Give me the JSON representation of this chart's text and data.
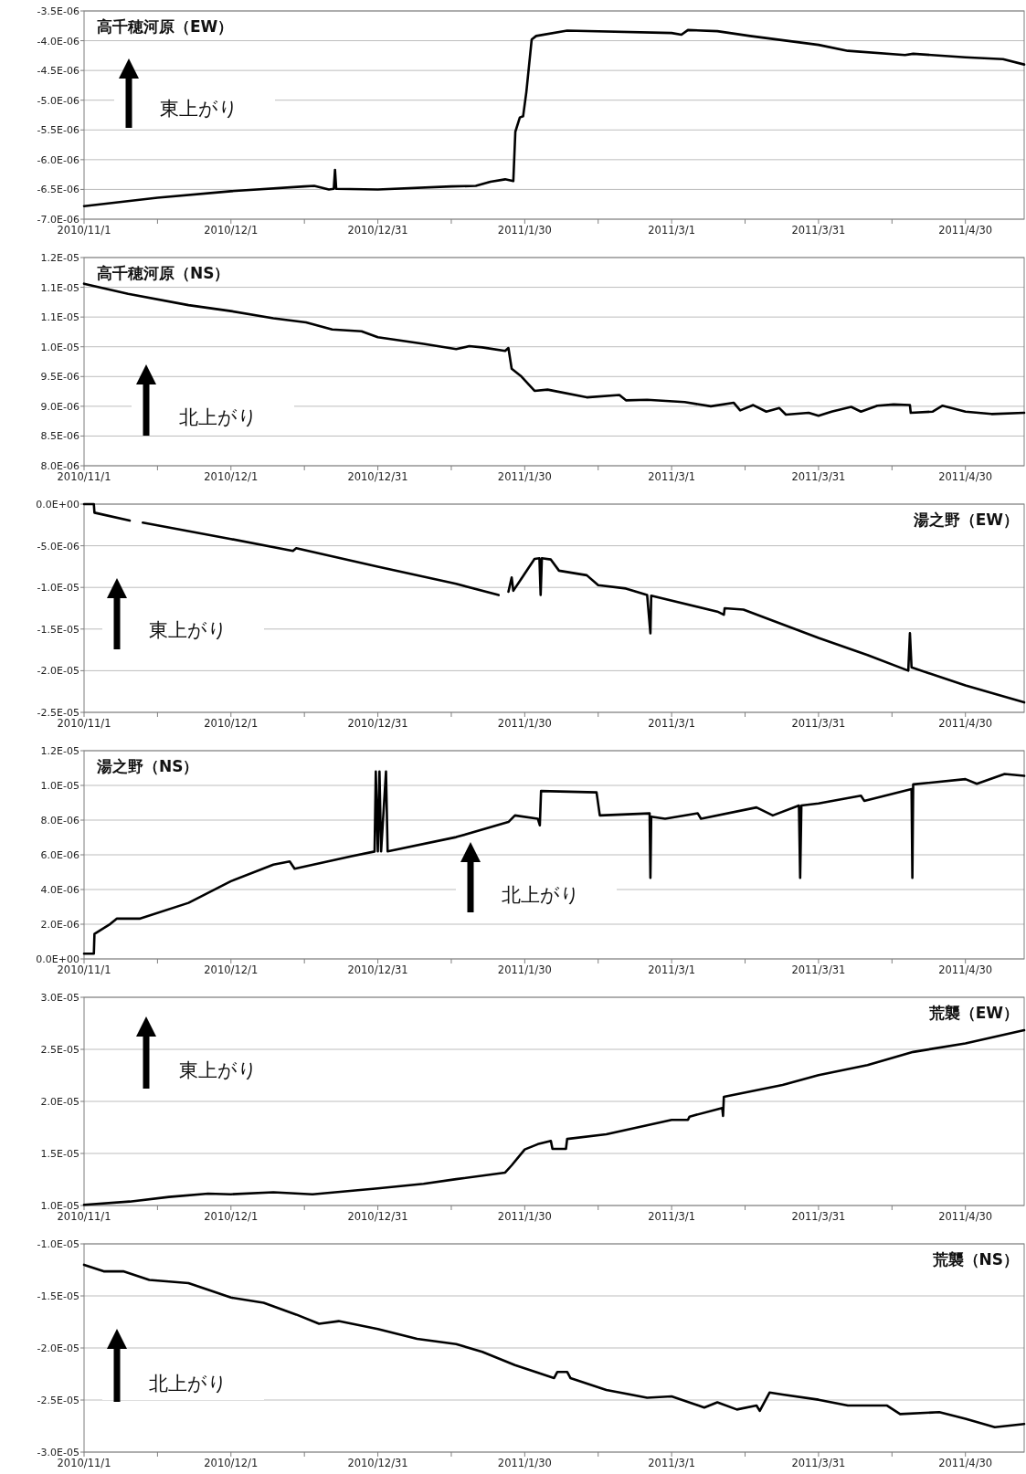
{
  "chart_data": [
    {
      "type": "line",
      "title": "高千穂河原（EW）",
      "annotations": [
        "東上がり"
      ],
      "grid": "y",
      "xlim": [
        "2010-11-01",
        "2011-05-12"
      ],
      "xticks": [
        {
          "value": "2010-11-01",
          "label": "2010/11/1"
        },
        {
          "value": "2010-11-16",
          "label": null
        },
        {
          "value": "2010-12-01",
          "label": "2010/12/1"
        },
        {
          "value": "2010-12-16",
          "label": null
        },
        {
          "value": "2010-12-31",
          "label": "2010/12/31"
        },
        {
          "value": "2011-01-15",
          "label": null
        },
        {
          "value": "2011-01-30",
          "label": "2011/1/30"
        },
        {
          "value": "2011-02-14",
          "label": null
        },
        {
          "value": "2011-03-01",
          "label": "2011/3/1"
        },
        {
          "value": "2011-03-16",
          "label": null
        },
        {
          "value": "2011-03-31",
          "label": "2011/3/31"
        },
        {
          "value": "2011-04-15",
          "label": null
        },
        {
          "value": "2011-04-30",
          "label": "2011/4/30"
        }
      ],
      "ylim": [
        -7e-06,
        -3.5e-06
      ],
      "yticks": [
        {
          "value": -7e-06,
          "label": "-7.0E-06"
        },
        {
          "value": -6.5e-06,
          "label": "-6.5E-06"
        },
        {
          "value": -6e-06,
          "label": "-6.0E-06"
        },
        {
          "value": -5.5e-06,
          "label": "-5.5E-06"
        },
        {
          "value": -5e-06,
          "label": "-5.0E-06"
        },
        {
          "value": -4.5e-06,
          "label": "-4.5E-06"
        },
        {
          "value": -4e-06,
          "label": "-4.0E-06"
        },
        {
          "value": -3.5e-06,
          "label": "-3.5E-06"
        }
      ],
      "series": [
        {
          "color": "#000000",
          "x": [
            "2010-11-01",
            "2010-11-16",
            "2010-12-01",
            "2010-12-16",
            "2010-12-18",
            "2010-12-21",
            "2010-12-22",
            "2010-12-22T06:00",
            "2010-12-22T12:00",
            "2010-12-31",
            "2011-01-15",
            "2011-01-20",
            "2011-01-23",
            "2011-01-26",
            "2011-01-27T16:00",
            "2011-01-28T02:00",
            "2011-01-29",
            "2011-01-29T16:00",
            "2011-01-30T08:00",
            "2011-01-31T10:00",
            "2011-02-01T08:00",
            "2011-02-07T16:00",
            "2011-03-01",
            "2011-03-03",
            "2011-03-04T08:00",
            "2011-03-10T08:00",
            "2011-03-17",
            "2011-03-31",
            "2011-04-06",
            "2011-04-17T16:00",
            "2011-04-19T08:00",
            "2011-04-30",
            "2011-05-07T16:00",
            "2011-05-12"
          ],
          "values": [
            -6.78e-06,
            -6.64e-06,
            -6.53e-06,
            -6.45e-06,
            -6.44e-06,
            -6.5e-06,
            -6.49e-06,
            -6.17e-06,
            -6.49e-06,
            -6.5e-06,
            -6.45e-06,
            -6.44e-06,
            -6.37e-06,
            -6.33e-06,
            -6.36e-06,
            -5.53e-06,
            -5.29e-06,
            -5.27e-06,
            -4.86e-06,
            -3.98e-06,
            -3.92e-06,
            -3.83e-06,
            -3.87e-06,
            -3.9e-06,
            -3.82e-06,
            -3.84e-06,
            -3.92e-06,
            -4.07e-06,
            -4.17e-06,
            -4.24e-06,
            -4.22e-06,
            -4.28e-06,
            -4.31e-06,
            -4.4e-06
          ]
        }
      ]
    },
    {
      "type": "line",
      "title": "高千穂河原（NS）",
      "annotations": [
        "北上がり"
      ],
      "grid": "y",
      "xlim": [
        "2010-11-01",
        "2011-05-12"
      ],
      "xticks": [
        {
          "value": "2010-11-01",
          "label": "2010/11/1"
        },
        {
          "value": "2010-11-16",
          "label": null
        },
        {
          "value": "2010-12-01",
          "label": "2010/12/1"
        },
        {
          "value": "2010-12-16",
          "label": null
        },
        {
          "value": "2010-12-31",
          "label": "2010/12/31"
        },
        {
          "value": "2011-01-15",
          "label": null
        },
        {
          "value": "2011-01-30",
          "label": "2011/1/30"
        },
        {
          "value": "2011-02-14",
          "label": null
        },
        {
          "value": "2011-03-01",
          "label": "2011/3/1"
        },
        {
          "value": "2011-03-16",
          "label": null
        },
        {
          "value": "2011-03-31",
          "label": "2011/3/31"
        },
        {
          "value": "2011-04-15",
          "label": null
        },
        {
          "value": "2011-04-30",
          "label": "2011/4/30"
        }
      ],
      "ylim": [
        8e-06,
        1.15e-05
      ],
      "yticks": [
        {
          "value": 8e-06,
          "label": "8.0E-06"
        },
        {
          "value": 8.5e-06,
          "label": "8.5E-06"
        },
        {
          "value": 9e-06,
          "label": "9.0E-06"
        },
        {
          "value": 9.5e-06,
          "label": "9.5E-06"
        },
        {
          "value": 1e-05,
          "label": "1.0E-05"
        },
        {
          "value": 1.05e-05,
          "label": "1.1E-05"
        },
        {
          "value": 1.1e-05,
          "label": "1.1E-05"
        },
        {
          "value": 1.15e-05,
          "label": "1.2E-05"
        }
      ],
      "series": [
        {
          "color": "#000000",
          "x": [
            "2010-11-01",
            "2010-11-10",
            "2010-11-22T08:00",
            "2010-12-01",
            "2010-12-09T16:00",
            "2010-12-16T08:00",
            "2010-12-21T16:00",
            "2010-12-27T16:00",
            "2010-12-31",
            "2011-01-09T08:00",
            "2011-01-16",
            "2011-01-18T16:00",
            "2011-01-21T08:00",
            "2011-01-26",
            "2011-01-26T16:00",
            "2011-01-27T08:00",
            "2011-01-29T08:00",
            "2011-02-01",
            "2011-02-03T16:00",
            "2011-02-11T16:00",
            "2011-02-18T08:00",
            "2011-02-19T16:00",
            "2011-02-24",
            "2011-03-03T16:00",
            "2011-03-09",
            "2011-03-13T16:00",
            "2011-03-15",
            "2011-03-17T16:00",
            "2011-03-20T08:00",
            "2011-03-23",
            "2011-03-24T08:00",
            "2011-03-29",
            "2011-03-31",
            "2011-04-02T16:00",
            "2011-04-06T16:00",
            "2011-04-08T16:00",
            "2011-04-12",
            "2011-04-15T08:00",
            "2011-04-18T16:00",
            "2011-04-18T20:00",
            "2011-04-23T08:00",
            "2011-04-25T08:00",
            "2011-04-30",
            "2011-05-05T08:00",
            "2011-05-12"
          ],
          "values": [
            1.106e-05,
            1.089e-05,
            1.07e-05,
            1.06e-05,
            1.048e-05,
            1.041e-05,
            1.029e-05,
            1.026e-05,
            1.016e-05,
            1.005e-05,
            9.96e-06,
            1.001e-05,
            9.99e-06,
            9.93e-06,
            9.98e-06,
            9.63e-06,
            9.5e-06,
            9.26e-06,
            9.28e-06,
            9.15e-06,
            9.19e-06,
            9.1e-06,
            9.11e-06,
            9.07e-06,
            9e-06,
            9.06e-06,
            8.93e-06,
            9.02e-06,
            8.91e-06,
            8.97e-06,
            8.86e-06,
            8.89e-06,
            8.84e-06,
            8.91e-06,
            8.99e-06,
            8.91e-06,
            9.01e-06,
            9.03e-06,
            9.02e-06,
            8.89e-06,
            8.91e-06,
            9.01e-06,
            8.91e-06,
            8.87e-06,
            8.89e-06
          ]
        }
      ]
    },
    {
      "type": "line",
      "title": "湯之野（EW）",
      "annotations": [
        "東上がり"
      ],
      "grid": "y",
      "xlim": [
        "2010-11-01",
        "2011-05-12"
      ],
      "xticks": [
        {
          "value": "2010-11-01",
          "label": "2010/11/1"
        },
        {
          "value": "2010-11-16",
          "label": null
        },
        {
          "value": "2010-12-01",
          "label": "2010/12/1"
        },
        {
          "value": "2010-12-16",
          "label": null
        },
        {
          "value": "2010-12-31",
          "label": "2010/12/31"
        },
        {
          "value": "2011-01-15",
          "label": null
        },
        {
          "value": "2011-01-30",
          "label": "2011/1/30"
        },
        {
          "value": "2011-02-14",
          "label": null
        },
        {
          "value": "2011-03-01",
          "label": "2011/3/1"
        },
        {
          "value": "2011-03-16",
          "label": null
        },
        {
          "value": "2011-03-31",
          "label": "2011/3/31"
        },
        {
          "value": "2011-04-15",
          "label": null
        },
        {
          "value": "2011-04-30",
          "label": "2011/4/30"
        }
      ],
      "ylim": [
        -2.5e-05,
        0
      ],
      "yticks": [
        {
          "value": -2.5e-05,
          "label": "-2.5E-05"
        },
        {
          "value": -2e-05,
          "label": "-2.0E-05"
        },
        {
          "value": -1.5e-05,
          "label": "-1.5E-05"
        },
        {
          "value": -1e-05,
          "label": "-1.0E-05"
        },
        {
          "value": -5e-06,
          "label": "-5.0E-06"
        },
        {
          "value": 0,
          "label": "0.0E+00"
        }
      ],
      "series": [
        {
          "color": "#000000",
          "x": [
            "2010-11-01",
            "2010-11-03",
            "2010-11-03T03:00",
            "2010-11-10T08:00",
            "2010-11-11T12:00",
            "2010-11-13",
            "2010-12-01",
            "2010-12-13T16:00",
            "2010-12-14T08:00",
            "2010-12-31",
            "2011-01-16",
            "2011-01-24T16:00",
            "2011-01-25T14:00",
            "2011-01-26T16:00",
            "2011-01-27T08:00",
            "2011-01-27T16:00",
            "2011-01-29T08:00",
            "2011-02-01",
            "2011-02-02",
            "2011-02-02T06:00",
            "2011-02-02T12:00",
            "2011-02-04T08:00",
            "2011-02-06",
            "2011-02-11T16:00",
            "2011-02-14",
            "2011-02-19T16:00",
            "2011-02-24",
            "2011-02-24T16:00",
            "2011-02-24T20:00",
            "2011-03-10T08:00",
            "2011-03-11T16:00",
            "2011-03-11T20:00",
            "2011-03-15T16:00",
            "2011-03-31",
            "2011-04-10",
            "2011-04-18T08:00",
            "2011-04-18T16:00",
            "2011-04-19",
            "2011-04-30",
            "2011-05-12"
          ],
          "values": [
            0,
            0,
            -1.03e-06,
            -1.98e-06,
            null,
            -2.22e-06,
            -4.19e-06,
            -5.62e-06,
            -5.3e-06,
            -7.52e-06,
            -9.57e-06,
            -1.092e-05,
            null,
            -1.052e-05,
            -8.8e-06,
            -1.04e-05,
            -8.94e-06,
            -6.57e-06,
            -6.5e-06,
            -1.09e-05,
            -6.5e-06,
            -6.65e-06,
            -7.99e-06,
            -8.54e-06,
            -9.73e-06,
            -1.013e-05,
            -1.092e-05,
            -1.55e-05,
            -1.1e-05,
            -1.29e-05,
            -1.329e-05,
            -1.25e-05,
            -1.266e-05,
            -1.606e-05,
            -1.812e-05,
            -2e-05,
            -1.55e-05,
            -1.96e-05,
            -2.176e-05,
            -2.38e-05
          ]
        }
      ]
    },
    {
      "type": "line",
      "title": "湯之野（NS）",
      "annotations": [
        "北上がり"
      ],
      "grid": "y",
      "xlim": [
        "2010-11-01",
        "2011-05-12"
      ],
      "xticks": [
        {
          "value": "2010-11-01",
          "label": "2010/11/1"
        },
        {
          "value": "2010-11-16",
          "label": null
        },
        {
          "value": "2010-12-01",
          "label": "2010/12/1"
        },
        {
          "value": "2010-12-16",
          "label": null
        },
        {
          "value": "2010-12-31",
          "label": "2010/12/31"
        },
        {
          "value": "2011-01-15",
          "label": null
        },
        {
          "value": "2011-01-30",
          "label": "2011/1/30"
        },
        {
          "value": "2011-02-14",
          "label": null
        },
        {
          "value": "2011-03-01",
          "label": "2011/3/1"
        },
        {
          "value": "2011-03-16",
          "label": null
        },
        {
          "value": "2011-03-31",
          "label": "2011/3/31"
        },
        {
          "value": "2011-04-15",
          "label": null
        },
        {
          "value": "2011-04-30",
          "label": "2011/4/30"
        }
      ],
      "ylim": [
        0,
        1.2e-05
      ],
      "yticks": [
        {
          "value": 0,
          "label": "0.0E+00"
        },
        {
          "value": 2e-06,
          "label": "2.0E-06"
        },
        {
          "value": 4e-06,
          "label": "4.0E-06"
        },
        {
          "value": 6e-06,
          "label": "6.0E-06"
        },
        {
          "value": 8e-06,
          "label": "8.0E-06"
        },
        {
          "value": 1e-05,
          "label": "1.0E-05"
        },
        {
          "value": 1.2e-05,
          "label": "1.2E-05"
        }
      ],
      "series": [
        {
          "color": "#000000",
          "x": [
            "2010-11-01",
            "2010-11-03",
            "2010-11-03T03:00",
            "2010-11-06T08:00",
            "2010-11-07T16:00",
            "2010-11-12T08:00",
            "2010-11-22T08:00",
            "2010-12-01",
            "2010-12-09T16:00",
            "2010-12-13",
            "2010-12-14",
            "2010-12-25T16:00",
            "2010-12-30T08:00",
            "2010-12-30T14:00",
            "2010-12-31",
            "2010-12-31T08:00",
            "2010-12-31T16:00",
            "2011-01-01T16:00",
            "2011-01-02",
            "2011-01-16",
            "2011-01-26T16:00",
            "2011-01-28",
            "2011-02-01T16:00",
            "2011-02-02T02:00",
            "2011-02-02T08:00",
            "2011-02-13T16:00",
            "2011-02-14T08:00",
            "2011-02-24T12:00",
            "2011-02-24T16:00",
            "2011-02-24T20:00",
            "2011-02-27T16:00",
            "2011-03-06T08:00",
            "2011-03-07",
            "2011-03-18T08:00",
            "2011-03-21T16:00",
            "2011-03-27",
            "2011-03-27T06:00",
            "2011-03-27T12:00",
            "2011-03-31",
            "2011-04-08T16:00",
            "2011-04-09T08:00",
            "2011-04-19",
            "2011-04-19T04:00",
            "2011-04-19T08:00",
            "2011-04-30",
            "2011-05-02T08:00",
            "2011-05-08",
            "2011-05-12"
          ],
          "values": [
            3e-07,
            3e-07,
            1.44e-06,
            2.01e-06,
            2.32e-06,
            2.32e-06,
            3.23e-06,
            4.48e-06,
            5.43e-06,
            5.62e-06,
            5.2e-06,
            5.92e-06,
            6.19e-06,
            1.08e-05,
            6.2e-06,
            1.08e-05,
            6.2e-06,
            1.08e-05,
            6.2e-06,
            7.02e-06,
            7.89e-06,
            8.27e-06,
            8.08e-06,
            7.7e-06,
            9.68e-06,
            9.6e-06,
            8.27e-06,
            8.39e-06,
            4.67e-06,
            8.2e-06,
            8.08e-06,
            8.39e-06,
            8.08e-06,
            8.73e-06,
            8.27e-06,
            8.84e-06,
            4.67e-06,
            8.84e-06,
            8.96e-06,
            9.41e-06,
            9.11e-06,
            9.79e-06,
            4.67e-06,
            1.006e-05,
            1.036e-05,
            1.009e-05,
            1.066e-05,
            1.055e-05
          ]
        }
      ]
    },
    {
      "type": "line",
      "title": "荒襲（EW）",
      "annotations": [
        "東上がり"
      ],
      "grid": "y",
      "xlim": [
        "2010-11-01",
        "2011-05-12"
      ],
      "xticks": [
        {
          "value": "2010-11-01",
          "label": "2010/11/1"
        },
        {
          "value": "2010-11-16",
          "label": null
        },
        {
          "value": "2010-12-01",
          "label": "2010/12/1"
        },
        {
          "value": "2010-12-16",
          "label": null
        },
        {
          "value": "2010-12-31",
          "label": "2010/12/31"
        },
        {
          "value": "2011-01-15",
          "label": null
        },
        {
          "value": "2011-01-30",
          "label": "2011/1/30"
        },
        {
          "value": "2011-02-14",
          "label": null
        },
        {
          "value": "2011-03-01",
          "label": "2011/3/1"
        },
        {
          "value": "2011-03-16",
          "label": null
        },
        {
          "value": "2011-03-31",
          "label": "2011/3/31"
        },
        {
          "value": "2011-04-15",
          "label": null
        },
        {
          "value": "2011-04-30",
          "label": "2011/4/30"
        }
      ],
      "ylim": [
        1e-05,
        3e-05
      ],
      "yticks": [
        {
          "value": 1e-05,
          "label": "1.0E-05"
        },
        {
          "value": 1.5e-05,
          "label": "1.5E-05"
        },
        {
          "value": 2e-05,
          "label": "2.0E-05"
        },
        {
          "value": 2.5e-05,
          "label": "2.5E-05"
        },
        {
          "value": 3e-05,
          "label": "3.0E-05"
        }
      ],
      "series": [
        {
          "color": "#000000",
          "x": [
            "2010-11-01",
            "2010-11-10T08:00",
            "2010-11-18T08:00",
            "2010-11-26T08:00",
            "2010-12-01",
            "2010-12-09T16:00",
            "2010-12-17T16:00",
            "2010-12-31",
            "2011-01-09T08:00",
            "2011-01-16",
            "2011-01-26",
            "2011-01-27T08:00",
            "2011-01-30",
            "2011-02-01T16:00",
            "2011-02-04T08:00",
            "2011-02-04T16:00",
            "2011-02-07T10:00",
            "2011-02-07T16:00",
            "2011-02-15T16:00",
            "2011-03-01",
            "2011-03-04T08:00",
            "2011-03-04T16:00",
            "2011-03-11T08:00",
            "2011-03-11T12:00",
            "2011-03-11T16:00",
            "2011-03-23T16:00",
            "2011-03-31",
            "2011-04-10",
            "2011-04-19T08:00",
            "2011-04-30",
            "2011-05-12"
          ],
          "values": [
            1.006e-05,
            1.038e-05,
            1.082e-05,
            1.114e-05,
            1.108e-05,
            1.127e-05,
            1.108e-05,
            1.165e-05,
            1.209e-05,
            1.253e-05,
            1.316e-05,
            1.386e-05,
            1.538e-05,
            1.589e-05,
            1.62e-05,
            1.544e-05,
            1.544e-05,
            1.639e-05,
            1.684e-05,
            1.823e-05,
            1.823e-05,
            1.854e-05,
            1.937e-05,
            1.86e-05,
            2.044e-05,
            2.158e-05,
            2.253e-05,
            2.348e-05,
            2.475e-05,
            2.557e-05,
            2.684e-05
          ]
        }
      ]
    },
    {
      "type": "line",
      "title": "荒襲（NS）",
      "annotations": [
        "北上がり"
      ],
      "grid": "y",
      "xlim": [
        "2010-11-01",
        "2011-05-12"
      ],
      "xticks": [
        {
          "value": "2010-11-01",
          "label": "2010/11/1"
        },
        {
          "value": "2010-11-16",
          "label": null
        },
        {
          "value": "2010-12-01",
          "label": "2010/12/1"
        },
        {
          "value": "2010-12-16",
          "label": null
        },
        {
          "value": "2010-12-31",
          "label": "2010/12/31"
        },
        {
          "value": "2011-01-15",
          "label": null
        },
        {
          "value": "2011-01-30",
          "label": "2011/1/30"
        },
        {
          "value": "2011-02-14",
          "label": null
        },
        {
          "value": "2011-03-01",
          "label": "2011/3/1"
        },
        {
          "value": "2011-03-16",
          "label": null
        },
        {
          "value": "2011-03-31",
          "label": "2011/3/31"
        },
        {
          "value": "2011-04-15",
          "label": null
        },
        {
          "value": "2011-04-30",
          "label": "2011/4/30"
        }
      ],
      "ylim": [
        -3e-05,
        -1e-05
      ],
      "yticks": [
        {
          "value": -3e-05,
          "label": "-3.0E-05"
        },
        {
          "value": -2.5e-05,
          "label": "-2.5E-05"
        },
        {
          "value": -2e-05,
          "label": "-2.0E-05"
        },
        {
          "value": -1.5e-05,
          "label": "-1.5E-05"
        },
        {
          "value": -1e-05,
          "label": "-1.0E-05"
        }
      ],
      "series": [
        {
          "color": "#000000",
          "x": [
            "2010-11-01",
            "2010-11-05",
            "2010-11-09",
            "2010-11-14T08:00",
            "2010-11-22T08:00",
            "2010-11-26T08:00",
            "2010-12-01",
            "2010-12-07T16:00",
            "2010-12-14T08:00",
            "2010-12-19",
            "2010-12-23",
            "2010-12-31",
            "2011-01-08",
            "2011-01-16",
            "2011-01-21T08:00",
            "2011-01-28",
            "2011-02-05",
            "2011-02-05T16:00",
            "2011-02-07T16:00",
            "2011-02-08T08:00",
            "2011-02-15T16:00",
            "2011-02-24",
            "2011-03-01",
            "2011-03-07T16:00",
            "2011-03-10T08:00",
            "2011-03-14T08:00",
            "2011-03-18T08:00",
            "2011-03-19",
            "2011-03-21",
            "2011-03-23T16:00",
            "2011-03-31",
            "2011-04-06",
            "2011-04-14",
            "2011-04-16T16:00",
            "2011-04-24T16:00",
            "2011-04-30",
            "2011-05-06",
            "2011-05-12"
          ],
          "values": [
            -1.201e-05,
            -1.264e-05,
            -1.264e-05,
            -1.346e-05,
            -1.377e-05,
            -1.44e-05,
            -1.516e-05,
            -1.566e-05,
            -1.679e-05,
            -1.767e-05,
            -1.742e-05,
            -1.818e-05,
            -1.912e-05,
            -1.962e-05,
            -2.038e-05,
            -2.164e-05,
            -2.289e-05,
            -2.23e-05,
            -2.23e-05,
            -2.289e-05,
            -2.403e-05,
            -2.478e-05,
            -2.465e-05,
            -2.572e-05,
            -2.522e-05,
            -2.591e-05,
            -2.553e-05,
            -2.604e-05,
            -2.428e-05,
            -2.447e-05,
            -2.497e-05,
            -2.553e-05,
            -2.553e-05,
            -2.635e-05,
            -2.616e-05,
            -2.679e-05,
            -2.761e-05,
            -2.73e-05
          ]
        }
      ]
    }
  ]
}
